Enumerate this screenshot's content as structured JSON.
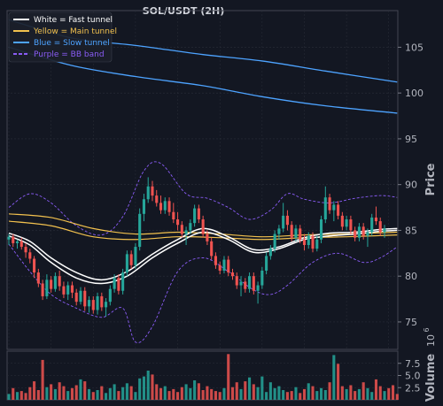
{
  "chart_data": {
    "type": "candlestick",
    "title": "SOL/USDT (2H)",
    "ylabel": "Price",
    "volume_label": "Volume",
    "volume_unit": "1e6",
    "volume_unit_base": "10",
    "volume_unit_exp": "6",
    "ylim": [
      72,
      109
    ],
    "yticks": [
      75,
      80,
      85,
      90,
      95,
      100,
      105
    ],
    "volume_ylim": [
      0,
      10
    ],
    "volume_yticks": [
      2.5,
      5.0,
      7.5
    ],
    "volume_ytick_labels": [
      "2.5",
      "5.0",
      "7.5"
    ],
    "grid": true,
    "legend": {
      "position": "top-left",
      "entries": [
        {
          "label": "White = Fast tunnel",
          "color": "#ffffff",
          "style": "solid"
        },
        {
          "label": "Yellow = Main tunnel",
          "color": "#f2c14e",
          "style": "solid"
        },
        {
          "label": "Blue = Slow tunnel",
          "color": "#4da3ff",
          "style": "solid"
        },
        {
          "label": "Purple = BB band",
          "color": "#8a5cf6",
          "style": "dashed"
        }
      ]
    },
    "colors": {
      "up": "#26a69a",
      "down": "#ef5350",
      "background": "#131722",
      "grid": "#2a2e39",
      "text": "#b2b5be"
    },
    "candles": [
      {
        "o": 84.0,
        "h": 84.6,
        "l": 83.4,
        "c": 84.3
      },
      {
        "o": 84.3,
        "h": 84.6,
        "l": 83.2,
        "c": 83.6
      },
      {
        "o": 83.6,
        "h": 84.0,
        "l": 83.0,
        "c": 83.8
      },
      {
        "o": 83.8,
        "h": 84.2,
        "l": 82.9,
        "c": 83.2
      },
      {
        "o": 83.2,
        "h": 83.6,
        "l": 82.0,
        "c": 82.6
      },
      {
        "o": 82.6,
        "h": 83.0,
        "l": 81.4,
        "c": 81.9
      },
      {
        "o": 81.9,
        "h": 82.2,
        "l": 79.8,
        "c": 80.4
      },
      {
        "o": 80.4,
        "h": 80.8,
        "l": 78.8,
        "c": 79.2
      },
      {
        "o": 79.2,
        "h": 79.6,
        "l": 77.4,
        "c": 77.8
      },
      {
        "o": 77.8,
        "h": 80.2,
        "l": 77.5,
        "c": 79.6
      },
      {
        "o": 79.6,
        "h": 80.0,
        "l": 78.2,
        "c": 78.6
      },
      {
        "o": 78.6,
        "h": 80.4,
        "l": 78.3,
        "c": 80.0
      },
      {
        "o": 80.0,
        "h": 80.6,
        "l": 78.4,
        "c": 78.9
      },
      {
        "o": 78.9,
        "h": 79.4,
        "l": 77.6,
        "c": 78.0
      },
      {
        "o": 78.0,
        "h": 79.4,
        "l": 77.4,
        "c": 79.0
      },
      {
        "o": 79.0,
        "h": 79.4,
        "l": 77.6,
        "c": 78.2
      },
      {
        "o": 78.2,
        "h": 78.6,
        "l": 76.8,
        "c": 77.2
      },
      {
        "o": 77.2,
        "h": 78.8,
        "l": 76.9,
        "c": 78.4
      },
      {
        "o": 78.4,
        "h": 78.8,
        "l": 76.2,
        "c": 76.7
      },
      {
        "o": 76.7,
        "h": 77.8,
        "l": 76.0,
        "c": 77.4
      },
      {
        "o": 77.4,
        "h": 77.8,
        "l": 75.9,
        "c": 76.3
      },
      {
        "o": 76.3,
        "h": 78.2,
        "l": 75.8,
        "c": 77.8
      },
      {
        "o": 77.8,
        "h": 78.2,
        "l": 76.2,
        "c": 76.6
      },
      {
        "o": 76.6,
        "h": 77.6,
        "l": 75.6,
        "c": 77.2
      },
      {
        "o": 77.2,
        "h": 79.0,
        "l": 76.8,
        "c": 78.6
      },
      {
        "o": 78.6,
        "h": 80.2,
        "l": 78.2,
        "c": 79.8
      },
      {
        "o": 79.8,
        "h": 80.2,
        "l": 78.0,
        "c": 78.4
      },
      {
        "o": 78.4,
        "h": 80.8,
        "l": 78.0,
        "c": 80.4
      },
      {
        "o": 80.4,
        "h": 82.8,
        "l": 80.0,
        "c": 82.4
      },
      {
        "o": 82.4,
        "h": 82.8,
        "l": 80.8,
        "c": 81.2
      },
      {
        "o": 81.2,
        "h": 83.6,
        "l": 80.8,
        "c": 83.2
      },
      {
        "o": 83.2,
        "h": 87.4,
        "l": 82.8,
        "c": 86.8
      },
      {
        "o": 86.8,
        "h": 89.0,
        "l": 86.0,
        "c": 88.4
      },
      {
        "o": 88.4,
        "h": 90.8,
        "l": 88.0,
        "c": 89.8
      },
      {
        "o": 89.8,
        "h": 90.4,
        "l": 88.2,
        "c": 88.8
      },
      {
        "o": 88.8,
        "h": 89.4,
        "l": 87.6,
        "c": 88.0
      },
      {
        "o": 88.0,
        "h": 88.8,
        "l": 86.8,
        "c": 87.2
      },
      {
        "o": 87.2,
        "h": 88.6,
        "l": 86.8,
        "c": 88.2
      },
      {
        "o": 88.2,
        "h": 88.6,
        "l": 86.6,
        "c": 87.0
      },
      {
        "o": 87.0,
        "h": 88.0,
        "l": 85.8,
        "c": 86.2
      },
      {
        "o": 86.2,
        "h": 87.0,
        "l": 85.0,
        "c": 85.6
      },
      {
        "o": 85.6,
        "h": 86.0,
        "l": 84.2,
        "c": 84.6
      },
      {
        "o": 84.6,
        "h": 85.4,
        "l": 83.4,
        "c": 85.0
      },
      {
        "o": 85.0,
        "h": 86.2,
        "l": 84.6,
        "c": 85.8
      },
      {
        "o": 85.8,
        "h": 87.8,
        "l": 85.4,
        "c": 87.4
      },
      {
        "o": 87.4,
        "h": 87.8,
        "l": 85.8,
        "c": 86.2
      },
      {
        "o": 86.2,
        "h": 86.6,
        "l": 84.2,
        "c": 84.6
      },
      {
        "o": 84.6,
        "h": 85.0,
        "l": 83.4,
        "c": 83.8
      },
      {
        "o": 83.8,
        "h": 84.2,
        "l": 81.8,
        "c": 82.2
      },
      {
        "o": 82.2,
        "h": 82.6,
        "l": 80.8,
        "c": 81.2
      },
      {
        "o": 81.2,
        "h": 81.6,
        "l": 80.2,
        "c": 80.6
      },
      {
        "o": 80.6,
        "h": 82.2,
        "l": 80.3,
        "c": 81.8
      },
      {
        "o": 81.8,
        "h": 82.2,
        "l": 80.0,
        "c": 80.4
      },
      {
        "o": 80.4,
        "h": 80.8,
        "l": 79.6,
        "c": 80.0
      },
      {
        "o": 80.0,
        "h": 80.4,
        "l": 78.6,
        "c": 79.0
      },
      {
        "o": 79.0,
        "h": 80.0,
        "l": 77.8,
        "c": 79.4
      },
      {
        "o": 79.4,
        "h": 79.8,
        "l": 78.2,
        "c": 78.6
      },
      {
        "o": 78.6,
        "h": 80.4,
        "l": 78.2,
        "c": 80.0
      },
      {
        "o": 80.0,
        "h": 80.4,
        "l": 78.0,
        "c": 78.4
      },
      {
        "o": 78.4,
        "h": 79.4,
        "l": 77.0,
        "c": 79.0
      },
      {
        "o": 79.0,
        "h": 81.0,
        "l": 78.6,
        "c": 80.6
      },
      {
        "o": 80.6,
        "h": 82.6,
        "l": 80.2,
        "c": 82.2
      },
      {
        "o": 82.2,
        "h": 83.4,
        "l": 81.8,
        "c": 83.0
      },
      {
        "o": 83.0,
        "h": 85.0,
        "l": 82.6,
        "c": 84.6
      },
      {
        "o": 84.6,
        "h": 85.6,
        "l": 84.0,
        "c": 85.2
      },
      {
        "o": 85.2,
        "h": 88.0,
        "l": 84.8,
        "c": 86.6
      },
      {
        "o": 86.6,
        "h": 87.2,
        "l": 85.0,
        "c": 85.6
      },
      {
        "o": 85.6,
        "h": 86.0,
        "l": 83.8,
        "c": 84.2
      },
      {
        "o": 84.2,
        "h": 85.6,
        "l": 83.8,
        "c": 85.2
      },
      {
        "o": 85.2,
        "h": 85.6,
        "l": 83.6,
        "c": 84.0
      },
      {
        "o": 84.0,
        "h": 84.6,
        "l": 82.8,
        "c": 83.4
      },
      {
        "o": 83.4,
        "h": 84.8,
        "l": 83.0,
        "c": 84.4
      },
      {
        "o": 84.4,
        "h": 84.8,
        "l": 82.6,
        "c": 83.0
      },
      {
        "o": 83.0,
        "h": 84.4,
        "l": 82.7,
        "c": 84.0
      },
      {
        "o": 84.0,
        "h": 86.6,
        "l": 83.6,
        "c": 86.2
      },
      {
        "o": 86.2,
        "h": 89.8,
        "l": 85.8,
        "c": 88.6
      },
      {
        "o": 88.6,
        "h": 89.0,
        "l": 86.8,
        "c": 87.2
      },
      {
        "o": 87.2,
        "h": 88.2,
        "l": 86.0,
        "c": 87.8
      },
      {
        "o": 87.8,
        "h": 88.2,
        "l": 86.2,
        "c": 86.6
      },
      {
        "o": 86.6,
        "h": 87.0,
        "l": 85.0,
        "c": 85.4
      },
      {
        "o": 85.4,
        "h": 86.6,
        "l": 85.0,
        "c": 86.2
      },
      {
        "o": 86.2,
        "h": 86.6,
        "l": 84.6,
        "c": 85.0
      },
      {
        "o": 85.0,
        "h": 85.4,
        "l": 83.8,
        "c": 84.2
      },
      {
        "o": 84.2,
        "h": 85.8,
        "l": 83.8,
        "c": 85.4
      },
      {
        "o": 85.4,
        "h": 85.8,
        "l": 84.0,
        "c": 84.4
      },
      {
        "o": 84.4,
        "h": 85.2,
        "l": 83.2,
        "c": 84.8
      },
      {
        "o": 84.8,
        "h": 86.8,
        "l": 84.4,
        "c": 86.4
      },
      {
        "o": 86.4,
        "h": 87.6,
        "l": 85.6,
        "c": 86.0
      },
      {
        "o": 86.0,
        "h": 86.4,
        "l": 84.4,
        "c": 84.8
      },
      {
        "o": 84.8,
        "h": 85.6,
        "l": 84.2,
        "c": 85.2
      }
    ],
    "volumes": [
      1.2,
      2.4,
      1.6,
      1.8,
      1.4,
      2.6,
      3.8,
      2.0,
      8.2,
      2.6,
      3.2,
      2.2,
      3.6,
      2.8,
      1.8,
      2.4,
      3.0,
      4.2,
      3.8,
      2.2,
      1.6,
      2.0,
      2.8,
      1.4,
      2.4,
      3.2,
      1.8,
      2.6,
      3.4,
      2.8,
      1.6,
      4.4,
      4.8,
      6.0,
      5.2,
      3.2,
      2.4,
      2.8,
      1.8,
      2.2,
      1.6,
      2.6,
      3.2,
      2.4,
      4.0,
      3.4,
      2.0,
      2.8,
      2.2,
      1.8,
      1.6,
      2.4,
      9.4,
      2.6,
      3.6,
      2.2,
      3.8,
      4.6,
      3.2,
      2.6,
      4.8,
      1.6,
      3.6,
      2.4,
      2.8,
      2.0,
      1.6,
      1.8,
      2.6,
      1.4,
      2.2,
      3.4,
      2.8,
      1.8,
      2.4,
      2.0,
      3.6,
      9.2,
      7.4,
      2.8,
      2.2,
      3.0,
      1.8,
      2.2,
      3.6,
      2.4,
      1.6,
      4.2,
      2.8,
      1.8,
      2.4,
      3.0,
      1.2
    ],
    "fast_tunnel": [
      {
        "name": "fast-1",
        "color": "#ffffff",
        "knots": [
          [
            0,
            84.7
          ],
          [
            5,
            83.8
          ],
          [
            10,
            82.0
          ],
          [
            16,
            80.4
          ],
          [
            22,
            79.6
          ],
          [
            28,
            80.5
          ],
          [
            34,
            82.4
          ],
          [
            40,
            84.0
          ],
          [
            46,
            85.2
          ],
          [
            52,
            84.3
          ],
          [
            58,
            82.9
          ],
          [
            64,
            83.2
          ],
          [
            70,
            84.2
          ],
          [
            76,
            84.7
          ],
          [
            82,
            84.8
          ],
          [
            88,
            85.1
          ],
          [
            92,
            85.2
          ]
        ]
      },
      {
        "name": "fast-2",
        "color": "#ffffff",
        "knots": [
          [
            0,
            84.4
          ],
          [
            5,
            83.4
          ],
          [
            10,
            81.5
          ],
          [
            16,
            79.8
          ],
          [
            22,
            79.2
          ],
          [
            28,
            80.0
          ],
          [
            34,
            82.0
          ],
          [
            40,
            83.6
          ],
          [
            46,
            84.8
          ],
          [
            52,
            84.0
          ],
          [
            58,
            82.6
          ],
          [
            64,
            83.0
          ],
          [
            70,
            84.0
          ],
          [
            76,
            84.4
          ],
          [
            82,
            84.6
          ],
          [
            88,
            84.9
          ],
          [
            92,
            85.0
          ]
        ]
      }
    ],
    "main_tunnel": [
      {
        "name": "main-1",
        "color": "#f2c14e",
        "knots": [
          [
            0,
            86.8
          ],
          [
            10,
            86.4
          ],
          [
            20,
            85.2
          ],
          [
            30,
            84.6
          ],
          [
            40,
            84.8
          ],
          [
            50,
            84.6
          ],
          [
            60,
            84.3
          ],
          [
            70,
            84.5
          ],
          [
            80,
            84.6
          ],
          [
            92,
            84.8
          ]
        ]
      },
      {
        "name": "main-2",
        "color": "#f2c14e",
        "knots": [
          [
            0,
            86.0
          ],
          [
            10,
            85.5
          ],
          [
            20,
            84.3
          ],
          [
            30,
            84.0
          ],
          [
            40,
            84.3
          ],
          [
            50,
            84.2
          ],
          [
            60,
            84.0
          ],
          [
            70,
            84.2
          ],
          [
            80,
            84.3
          ],
          [
            92,
            84.5
          ]
        ]
      }
    ],
    "slow_tunnel": [
      {
        "name": "slow-1",
        "color": "#4da3ff",
        "knots": [
          [
            0,
            108.0
          ],
          [
            15,
            106.0
          ],
          [
            30,
            105.2
          ],
          [
            46,
            104.2
          ],
          [
            60,
            103.5
          ],
          [
            75,
            102.4
          ],
          [
            92,
            101.2
          ]
        ]
      },
      {
        "name": "slow-2",
        "color": "#4da3ff",
        "knots": [
          [
            0,
            105.0
          ],
          [
            15,
            103.0
          ],
          [
            30,
            101.8
          ],
          [
            46,
            100.8
          ],
          [
            60,
            99.6
          ],
          [
            75,
            98.6
          ],
          [
            92,
            97.8
          ]
        ]
      }
    ],
    "bb_band": [
      {
        "name": "bb-upper",
        "color": "#8a5cf6",
        "knots": [
          [
            0,
            87.5
          ],
          [
            5,
            89.0
          ],
          [
            10,
            88.0
          ],
          [
            16,
            85.5
          ],
          [
            22,
            84.5
          ],
          [
            27,
            86.5
          ],
          [
            32,
            91.5
          ],
          [
            36,
            92.3
          ],
          [
            42,
            89.0
          ],
          [
            47,
            88.5
          ],
          [
            52,
            87.5
          ],
          [
            57,
            86.2
          ],
          [
            62,
            87.2
          ],
          [
            66,
            89.0
          ],
          [
            70,
            88.4
          ],
          [
            76,
            88.0
          ],
          [
            82,
            88.5
          ],
          [
            88,
            88.8
          ],
          [
            92,
            88.6
          ]
        ]
      },
      {
        "name": "bb-lower",
        "color": "#8a5cf6",
        "knots": [
          [
            0,
            83.5
          ],
          [
            5,
            80.5
          ],
          [
            10,
            78.0
          ],
          [
            16,
            76.5
          ],
          [
            22,
            75.5
          ],
          [
            27,
            76.5
          ],
          [
            30,
            72.8
          ],
          [
            34,
            74.5
          ],
          [
            40,
            80.5
          ],
          [
            46,
            82.0
          ],
          [
            52,
            80.5
          ],
          [
            58,
            78.5
          ],
          [
            62,
            78.0
          ],
          [
            66,
            79.0
          ],
          [
            72,
            81.5
          ],
          [
            78,
            82.5
          ],
          [
            84,
            81.5
          ],
          [
            88,
            82.0
          ],
          [
            92,
            83.2
          ]
        ]
      }
    ]
  }
}
